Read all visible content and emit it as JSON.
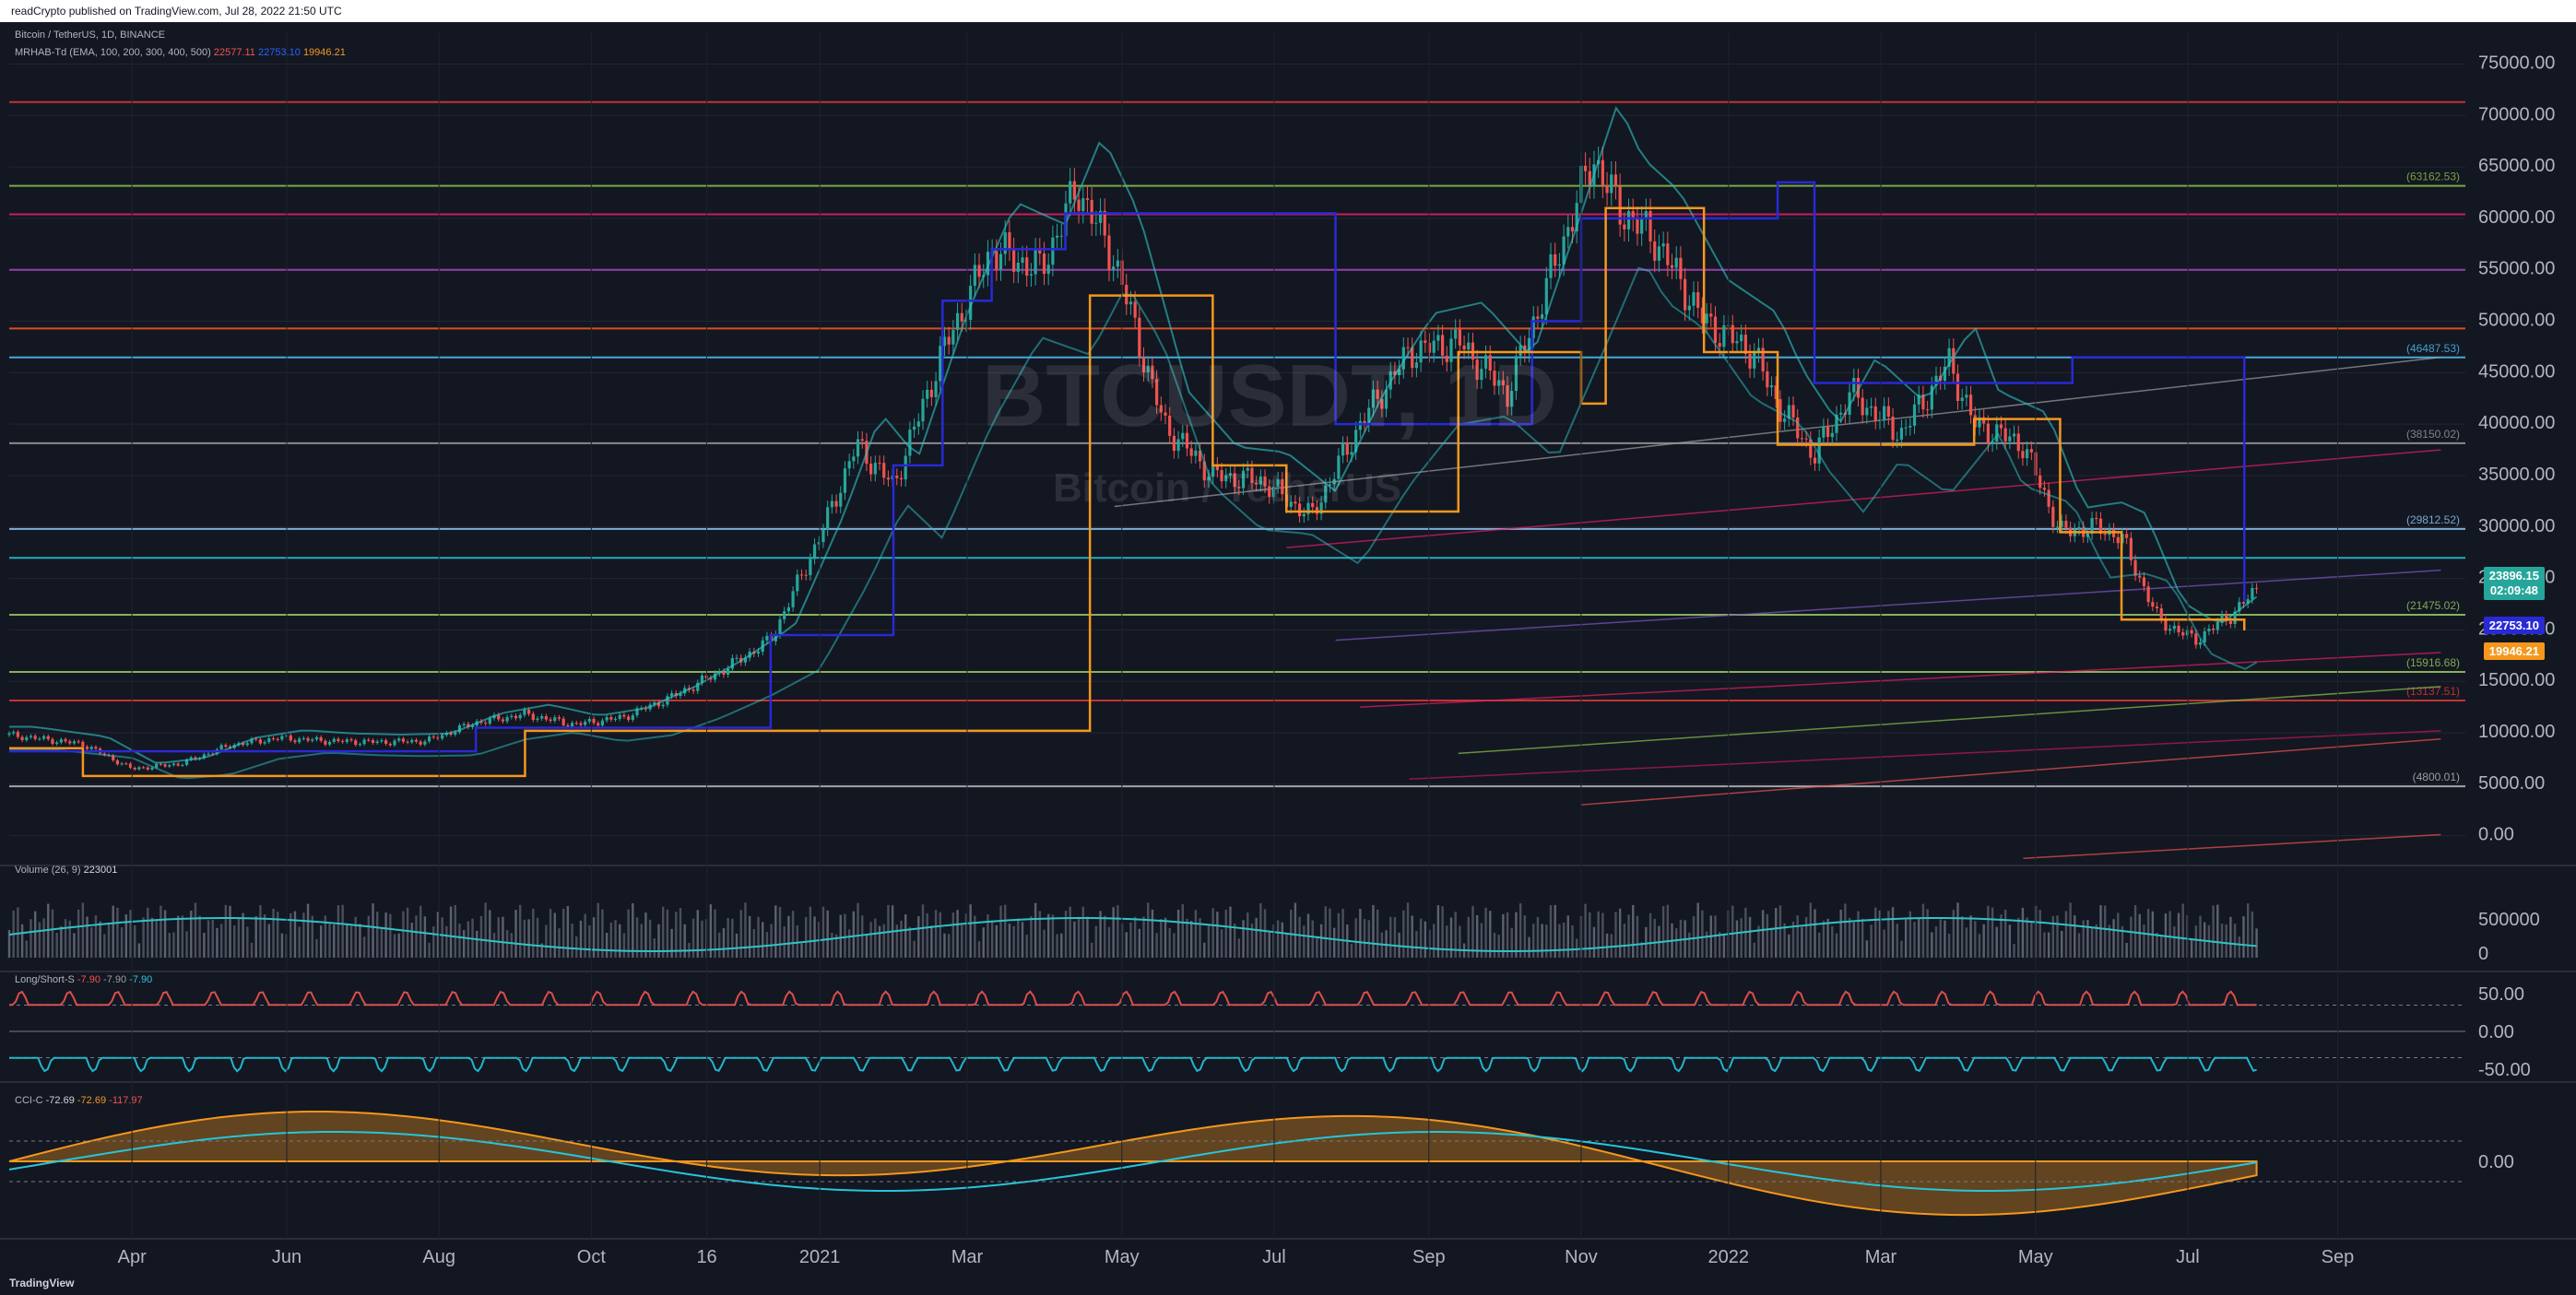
{
  "header": {
    "published": "readCrypto published on TradingView.com, Jul 28, 2022 21:50 UTC"
  },
  "footer": {
    "brand": "TradingView"
  },
  "legend": {
    "symbol": "Bitcoin / TetherUS, 1D, BINANCE",
    "indicator": "MRHAB-Td (EMA, 100, 200, 300, 400, 500)",
    "mrhab_values": [
      "22577.11",
      "22753.10",
      "19946.21"
    ],
    "volume": "Volume (26, 9)",
    "volume_value": "223001",
    "longshort": "Long/Short-S",
    "longshort_values": [
      "-7.90",
      "-7.90",
      "-7.90"
    ],
    "cci": "CCI-C",
    "cci_values": [
      "-72.69",
      "-72.69",
      "-117.97"
    ]
  },
  "watermark": {
    "ticker": "BTCUSDT, 1D",
    "name": "Bitcoin / TetherUS"
  },
  "price_labels": {
    "last": "23896.15",
    "countdown": "02:09:48",
    "blue": "22753.10",
    "orange": "19946.21"
  },
  "colors": {
    "up": "#26a69a",
    "down": "#ef5350",
    "blue_step": "#2929d6",
    "orange_step": "#f5971d",
    "cyan": "#2ec4c4"
  },
  "chart_data": [
    {
      "type": "candlestick",
      "title": "",
      "ylim": [
        -2000,
        78000
      ],
      "y_ticks": [
        "75000.00",
        "70000.00",
        "65000.00",
        "60000.00",
        "55000.00",
        "50000.00",
        "45000.00",
        "40000.00",
        "35000.00",
        "30000.00",
        "25000.00",
        "20000.00",
        "15000.00",
        "10000.00",
        "5000.00",
        "0.00"
      ],
      "x_ticks": [
        "Apr",
        "Jun",
        "Aug",
        "Oct",
        "16",
        "2021",
        "Mar",
        "May",
        "Jul",
        "Sep",
        "Nov",
        "2022",
        "Mar",
        "May",
        "Jul",
        "Sep"
      ],
      "x_tick_positions": [
        0.05,
        0.113,
        0.175,
        0.237,
        0.284,
        0.33,
        0.39,
        0.453,
        0.515,
        0.578,
        0.64,
        0.7,
        0.762,
        0.825,
        0.887,
        0.948
      ],
      "level_lines": [
        {
          "value": 71300,
          "label": "",
          "color": "#e53935"
        },
        {
          "value": 63162.53,
          "label": "(63162.53)",
          "color": "#8bc34a"
        },
        {
          "value": 60400,
          "label": "",
          "color": "#e91e63"
        },
        {
          "value": 55000,
          "label": "",
          "color": "#ab47bc"
        },
        {
          "value": 49300,
          "label": "",
          "color": "#ff5722"
        },
        {
          "value": 46487.53,
          "label": "(46487.53)",
          "color": "#4fc3f7"
        },
        {
          "value": 38150.02,
          "label": "(38150.02)",
          "color": "#9e9e9e"
        },
        {
          "value": 29812.52,
          "label": "(29812.52)",
          "color": "#90caf9"
        },
        {
          "value": 27000,
          "label": "",
          "color": "#26c6da"
        },
        {
          "value": 21475.02,
          "label": "(21475.02)",
          "color": "#9ccc65"
        },
        {
          "value": 15916.68,
          "label": "(15916.68)",
          "color": "#9ccc65"
        },
        {
          "value": 13137.51,
          "label": "(13137.51)",
          "color": "#e53935"
        },
        {
          "value": 4800.01,
          "label": "(4800.01)",
          "color": "#bdbdbd"
        }
      ],
      "price_points": [
        [
          0.0,
          9800
        ],
        [
          0.03,
          8900
        ],
        [
          0.05,
          6500
        ],
        [
          0.07,
          7000
        ],
        [
          0.09,
          8800
        ],
        [
          0.11,
          9500
        ],
        [
          0.13,
          9200
        ],
        [
          0.15,
          9100
        ],
        [
          0.17,
          9200
        ],
        [
          0.19,
          11000
        ],
        [
          0.21,
          11800
        ],
        [
          0.23,
          10800
        ],
        [
          0.25,
          11500
        ],
        [
          0.27,
          13500
        ],
        [
          0.29,
          16000
        ],
        [
          0.31,
          19000
        ],
        [
          0.33,
          29000
        ],
        [
          0.345,
          38000
        ],
        [
          0.36,
          34000
        ],
        [
          0.38,
          47000
        ],
        [
          0.4,
          57000
        ],
        [
          0.42,
          55000
        ],
        [
          0.435,
          63000
        ],
        [
          0.45,
          56000
        ],
        [
          0.47,
          40000
        ],
        [
          0.49,
          35000
        ],
        [
          0.51,
          34500
        ],
        [
          0.53,
          31000
        ],
        [
          0.55,
          40000
        ],
        [
          0.57,
          47000
        ],
        [
          0.59,
          48000
        ],
        [
          0.61,
          43000
        ],
        [
          0.63,
          56000
        ],
        [
          0.645,
          66000
        ],
        [
          0.655,
          61000
        ],
        [
          0.67,
          58000
        ],
        [
          0.69,
          50000
        ],
        [
          0.71,
          47000
        ],
        [
          0.72,
          42000
        ],
        [
          0.735,
          37000
        ],
        [
          0.75,
          43000
        ],
        [
          0.77,
          39000
        ],
        [
          0.79,
          46000
        ],
        [
          0.8,
          40000
        ],
        [
          0.82,
          38000
        ],
        [
          0.835,
          29500
        ],
        [
          0.85,
          30000
        ],
        [
          0.86,
          29000
        ],
        [
          0.875,
          21000
        ],
        [
          0.89,
          19000
        ],
        [
          0.905,
          21500
        ],
        [
          0.915,
          23900
        ]
      ]
    },
    {
      "type": "bar",
      "title": "Volume",
      "y_ticks": [
        "500000",
        "0"
      ],
      "ylim": [
        0,
        1000000
      ]
    },
    {
      "type": "line",
      "title": "Long/Short-S",
      "y_ticks": [
        "50.00",
        "0.00",
        "-50.00"
      ],
      "ylim": [
        -60,
        60
      ]
    },
    {
      "type": "area",
      "title": "CCI-C",
      "y_ticks": [
        "0.00"
      ],
      "ylim": [
        -250,
        250
      ]
    }
  ]
}
